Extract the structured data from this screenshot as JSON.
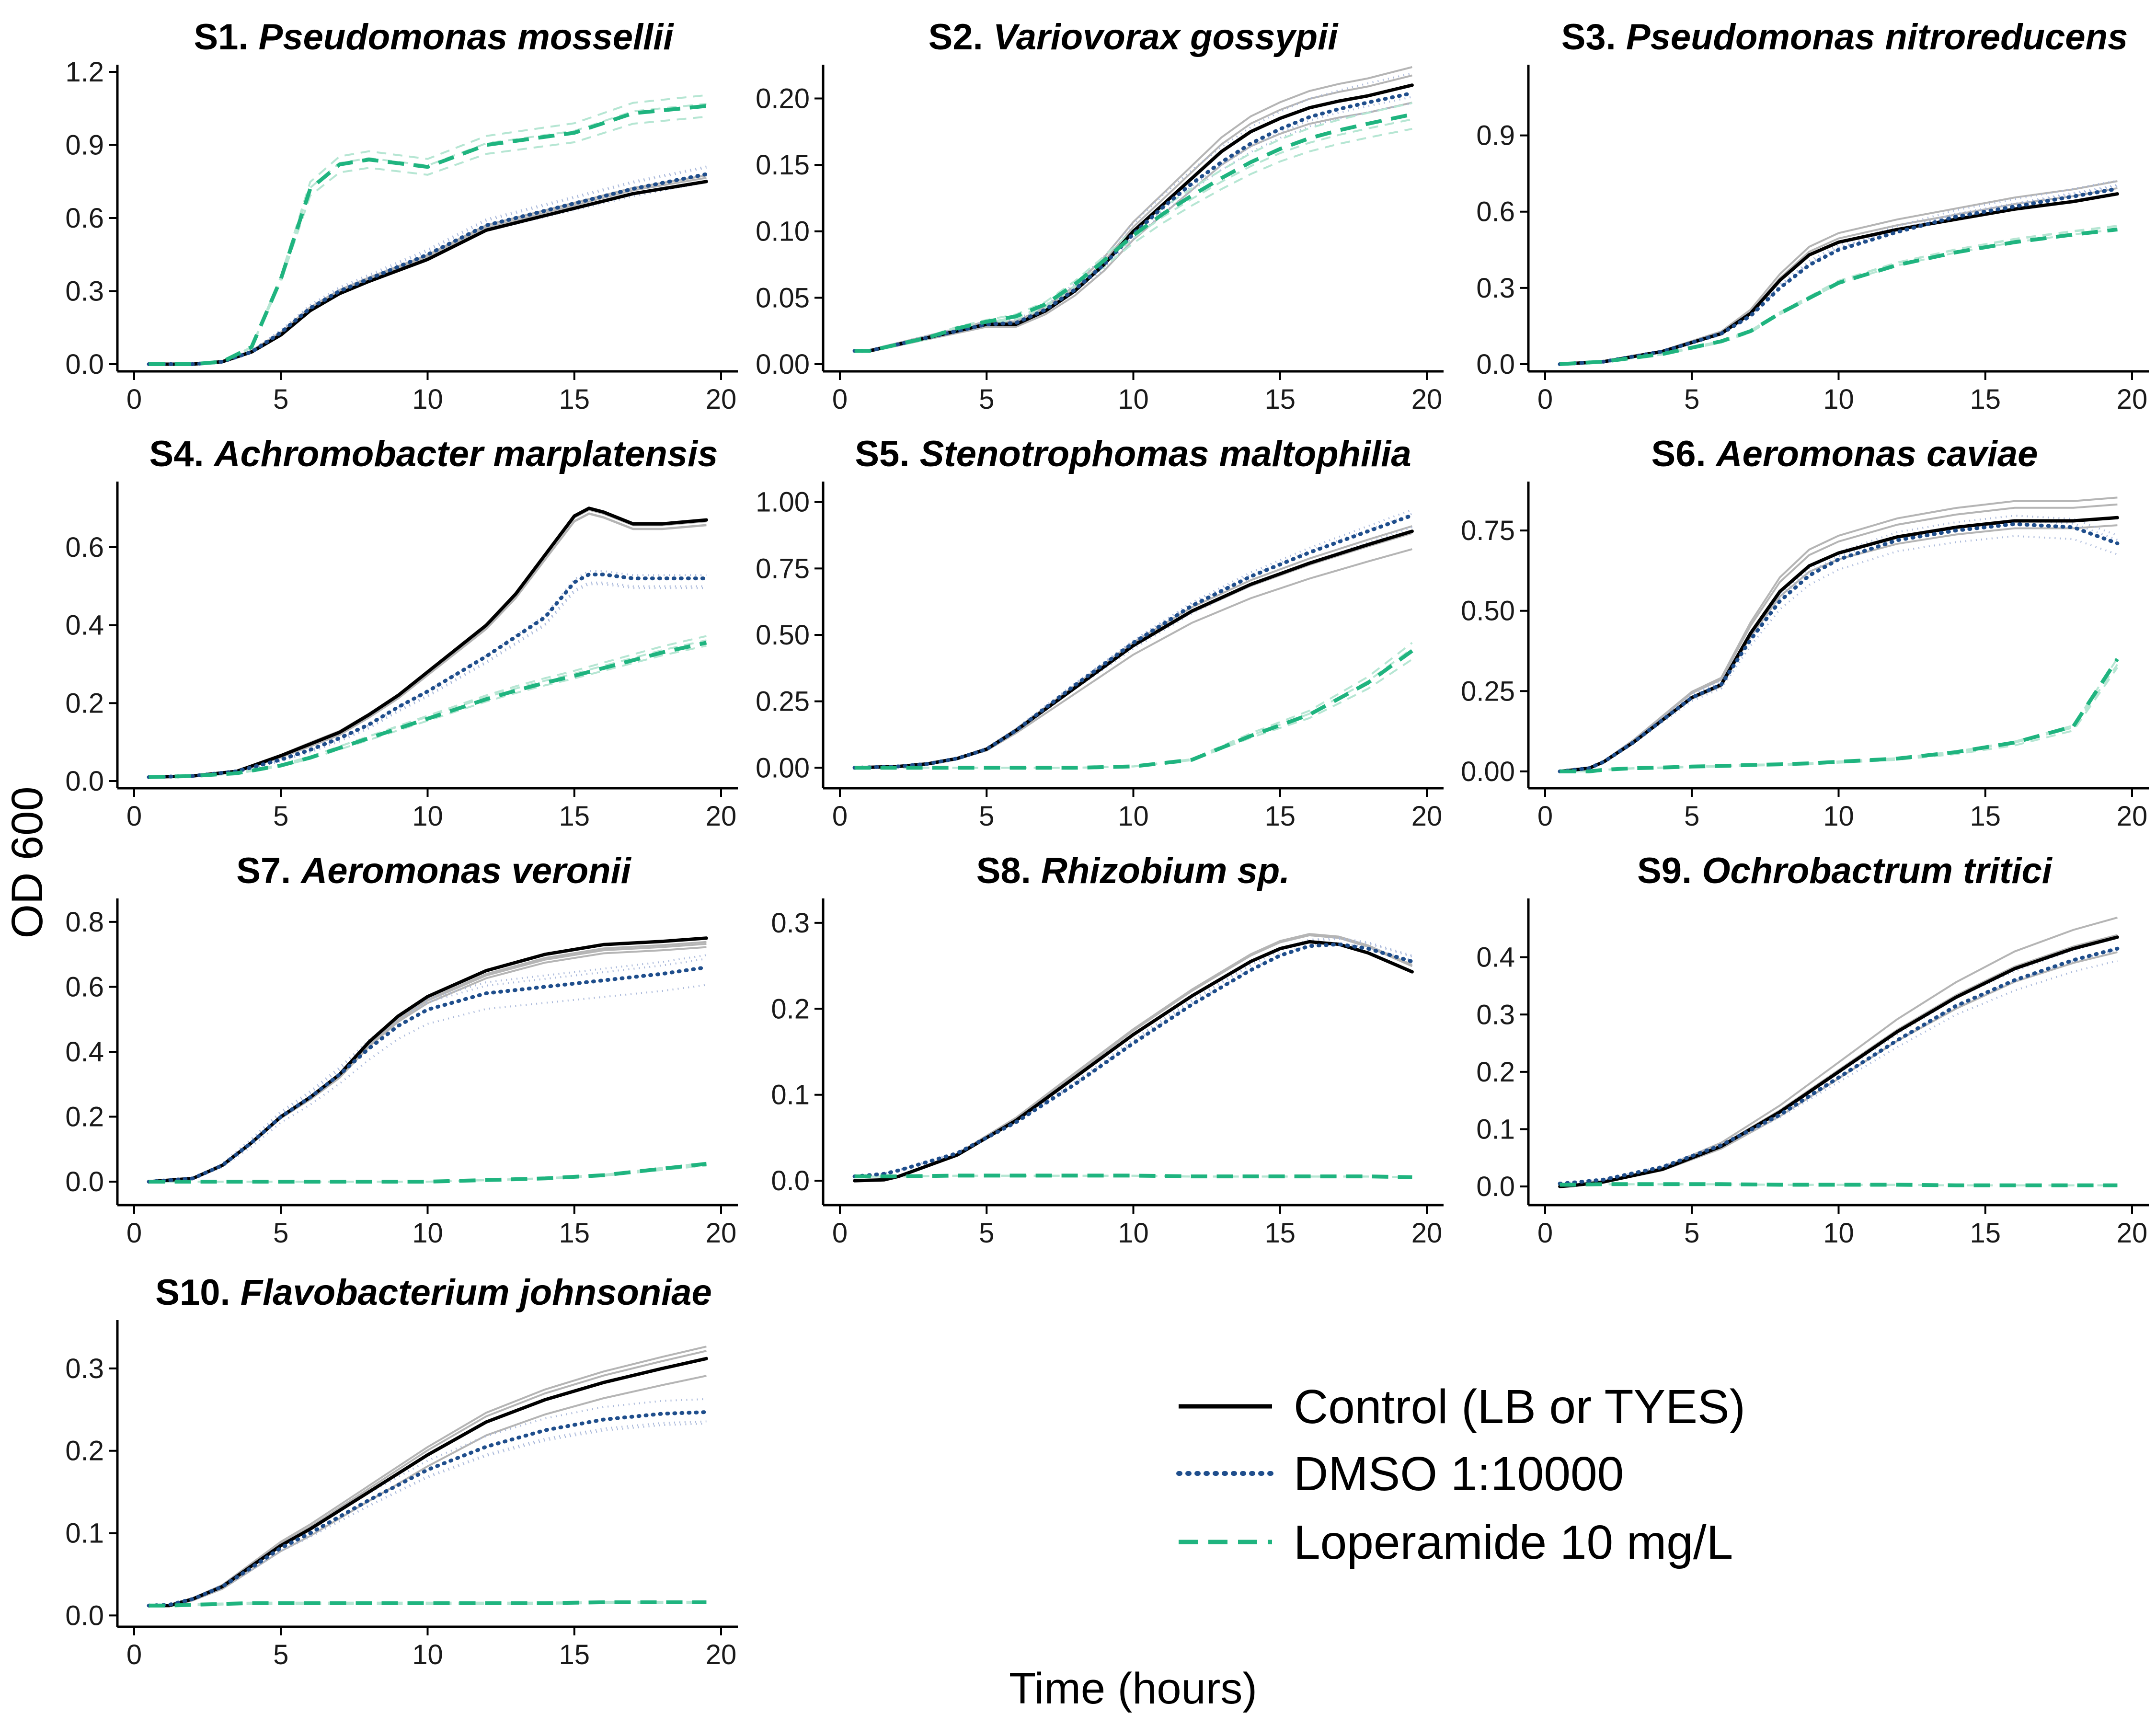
{
  "figure": {
    "xlabel": "Time (hours)",
    "ylabel": "OD 600"
  },
  "legend": {
    "placement": "bottom-right",
    "items": [
      {
        "label": "Control (LB or TYES)",
        "color": "#000000",
        "style": "solid"
      },
      {
        "label": "DMSO 1:10000",
        "color": "#1f4e8c",
        "style": "dotted"
      },
      {
        "label": "Loperamide 10 mg/L",
        "color": "#1fb47f",
        "style": "dashed"
      }
    ]
  },
  "colors": {
    "control": "#000000",
    "control_replicate": "#b5b5b5",
    "dmso": "#1f4e8c",
    "dmso_replicate": "#a9b8da",
    "loperamide": "#1fb47f",
    "loperamide_replicate": "#b6e6d3"
  },
  "chart_data": [
    {
      "type": "line",
      "code": "S1.",
      "species": "Pseudomonas mossellii",
      "xlim": [
        0,
        20
      ],
      "ylim": [
        0,
        1.2
      ],
      "xticks": [
        "0",
        "5",
        "10",
        "15",
        "20"
      ],
      "yticks": [
        "0.0",
        "0.3",
        "0.6",
        "0.9",
        "1.2"
      ],
      "x": [
        0.5,
        1,
        2,
        3,
        4,
        5,
        6,
        7,
        8,
        10,
        12,
        15,
        17,
        19.5
      ],
      "series": [
        {
          "name": "Control (LB or TYES)",
          "values": [
            0.0,
            0.0,
            0.0,
            0.01,
            0.05,
            0.12,
            0.22,
            0.29,
            0.34,
            0.43,
            0.55,
            0.64,
            0.7,
            0.75
          ]
        },
        {
          "name": "DMSO 1:10000",
          "values": [
            0.0,
            0.0,
            0.0,
            0.01,
            0.05,
            0.13,
            0.23,
            0.3,
            0.35,
            0.45,
            0.57,
            0.66,
            0.72,
            0.78
          ]
        },
        {
          "name": "Loperamide 10 mg/L",
          "values": [
            0.0,
            0.0,
            0.0,
            0.01,
            0.07,
            0.35,
            0.72,
            0.82,
            0.84,
            0.81,
            0.9,
            0.95,
            1.03,
            1.06
          ]
        }
      ]
    },
    {
      "type": "line",
      "code": "S2.",
      "species": "Variovorax gossypii",
      "xlim": [
        0,
        20
      ],
      "ylim": [
        0,
        0.22
      ],
      "xticks": [
        "0",
        "5",
        "10",
        "15",
        "20"
      ],
      "yticks": [
        "0.00",
        "0.05",
        "0.10",
        "0.15",
        "0.20"
      ],
      "x": [
        0.5,
        1,
        2,
        3,
        4,
        5,
        6,
        7,
        8,
        9,
        10,
        11,
        12,
        13,
        14,
        15,
        16,
        17,
        18,
        19.5
      ],
      "series": [
        {
          "name": "Control (LB or TYES)",
          "values": [
            0.01,
            0.01,
            0.015,
            0.02,
            0.025,
            0.03,
            0.03,
            0.04,
            0.055,
            0.075,
            0.1,
            0.12,
            0.14,
            0.16,
            0.175,
            0.185,
            0.193,
            0.198,
            0.202,
            0.21
          ]
        },
        {
          "name": "DMSO 1:10000",
          "values": [
            0.01,
            0.01,
            0.015,
            0.02,
            0.025,
            0.03,
            0.031,
            0.041,
            0.056,
            0.075,
            0.098,
            0.118,
            0.136,
            0.152,
            0.166,
            0.177,
            0.186,
            0.192,
            0.197,
            0.204
          ]
        },
        {
          "name": "Loperamide 10 mg/L",
          "values": [
            0.01,
            0.01,
            0.015,
            0.02,
            0.027,
            0.032,
            0.036,
            0.045,
            0.06,
            0.078,
            0.097,
            0.113,
            0.127,
            0.14,
            0.152,
            0.162,
            0.17,
            0.176,
            0.181,
            0.188
          ]
        }
      ]
    },
    {
      "type": "line",
      "code": "S3.",
      "species": "Pseudomonas nitroreducens",
      "xlim": [
        0,
        20
      ],
      "ylim": [
        0,
        1.15
      ],
      "xticks": [
        "0",
        "5",
        "10",
        "15",
        "20"
      ],
      "yticks": [
        "0.0",
        "0.3",
        "0.6",
        "0.9"
      ],
      "x": [
        0.5,
        2,
        4,
        6,
        7,
        8,
        9,
        10,
        12,
        14,
        16,
        18,
        19.5
      ],
      "series": [
        {
          "name": "Control (LB or TYES)",
          "values": [
            0.0,
            0.01,
            0.05,
            0.12,
            0.2,
            0.33,
            0.43,
            0.48,
            0.53,
            0.57,
            0.61,
            0.64,
            0.67
          ]
        },
        {
          "name": "DMSO 1:10000",
          "values": [
            0.0,
            0.01,
            0.05,
            0.12,
            0.19,
            0.3,
            0.39,
            0.45,
            0.52,
            0.58,
            0.62,
            0.66,
            0.69
          ]
        },
        {
          "name": "Loperamide 10 mg/L",
          "values": [
            0.0,
            0.01,
            0.04,
            0.09,
            0.13,
            0.2,
            0.26,
            0.32,
            0.39,
            0.44,
            0.48,
            0.51,
            0.53
          ]
        }
      ]
    },
    {
      "type": "line",
      "code": "S4.",
      "species": "Achromobacter marplatensis",
      "xlim": [
        0,
        20
      ],
      "ylim": [
        0,
        0.75
      ],
      "xticks": [
        "0",
        "5",
        "10",
        "15",
        "20"
      ],
      "yticks": [
        "0.0",
        "0.2",
        "0.4",
        "0.6"
      ],
      "x": [
        0.5,
        2,
        3.5,
        5,
        6,
        7,
        8,
        9,
        10,
        11,
        12,
        13,
        14,
        15,
        15.5,
        16,
        17,
        18,
        19.5
      ],
      "series": [
        {
          "name": "Control (LB or TYES)",
          "values": [
            0.01,
            0.013,
            0.025,
            0.065,
            0.095,
            0.125,
            0.17,
            0.22,
            0.28,
            0.34,
            0.4,
            0.48,
            0.58,
            0.68,
            0.7,
            0.69,
            0.66,
            0.66,
            0.67
          ]
        },
        {
          "name": "DMSO 1:10000",
          "values": [
            0.01,
            0.013,
            0.025,
            0.055,
            0.08,
            0.11,
            0.145,
            0.19,
            0.23,
            0.275,
            0.32,
            0.37,
            0.42,
            0.51,
            0.53,
            0.53,
            0.52,
            0.52,
            0.52
          ]
        },
        {
          "name": "Loperamide 10 mg/L",
          "values": [
            0.01,
            0.013,
            0.02,
            0.04,
            0.06,
            0.085,
            0.11,
            0.135,
            0.16,
            0.185,
            0.21,
            0.232,
            0.252,
            0.27,
            0.28,
            0.29,
            0.31,
            0.33,
            0.355
          ]
        }
      ]
    },
    {
      "type": "line",
      "code": "S5.",
      "species": "Stenotrophomas maltophilia",
      "xlim": [
        0,
        20
      ],
      "ylim": [
        -0.05,
        1.05
      ],
      "xticks": [
        "0",
        "5",
        "10",
        "15",
        "20"
      ],
      "yticks": [
        "0.00",
        "0.25",
        "0.50",
        "0.75",
        "1.00"
      ],
      "x": [
        0.5,
        2,
        3,
        4,
        5,
        6,
        8,
        10,
        12,
        14,
        16,
        18,
        19.5
      ],
      "series": [
        {
          "name": "Control (LB or TYES)",
          "values": [
            0.0,
            0.005,
            0.015,
            0.035,
            0.07,
            0.14,
            0.3,
            0.46,
            0.59,
            0.69,
            0.77,
            0.84,
            0.89
          ]
        },
        {
          "name": "DMSO 1:10000",
          "values": [
            0.0,
            0.005,
            0.015,
            0.035,
            0.07,
            0.14,
            0.31,
            0.47,
            0.61,
            0.72,
            0.81,
            0.89,
            0.95
          ]
        },
        {
          "name": "Loperamide 10 mg/L",
          "values": [
            0.0,
            0.0,
            0.0,
            0.0,
            0.0,
            0.0,
            0.0,
            0.005,
            0.03,
            0.12,
            0.2,
            0.32,
            0.44
          ]
        }
      ]
    },
    {
      "type": "line",
      "code": "S6.",
      "species": "Aeromonas caviae",
      "xlim": [
        0,
        20
      ],
      "ylim": [
        -0.03,
        0.88
      ],
      "xticks": [
        "0",
        "5",
        "10",
        "15",
        "20"
      ],
      "yticks": [
        "0.00",
        "0.25",
        "0.50",
        "0.75"
      ],
      "x": [
        0.5,
        1.5,
        2,
        3,
        4,
        5,
        6,
        7,
        8,
        9,
        10,
        12,
        14,
        16,
        18,
        19.5
      ],
      "series": [
        {
          "name": "Control (LB or TYES)",
          "values": [
            0.0,
            0.01,
            0.03,
            0.09,
            0.16,
            0.23,
            0.27,
            0.43,
            0.56,
            0.64,
            0.68,
            0.73,
            0.76,
            0.78,
            0.78,
            0.79
          ]
        },
        {
          "name": "DMSO 1:10000",
          "values": [
            0.0,
            0.01,
            0.03,
            0.09,
            0.16,
            0.23,
            0.27,
            0.41,
            0.53,
            0.61,
            0.66,
            0.72,
            0.75,
            0.77,
            0.76,
            0.71
          ]
        },
        {
          "name": "Loperamide 10 mg/L",
          "values": [
            0.0,
            0.0,
            0.005,
            0.01,
            0.012,
            0.015,
            0.017,
            0.02,
            0.022,
            0.025,
            0.03,
            0.04,
            0.06,
            0.09,
            0.14,
            0.35
          ]
        }
      ]
    },
    {
      "type": "line",
      "code": "S7.",
      "species": "Aeromonas veronii",
      "xlim": [
        0,
        20
      ],
      "ylim": [
        -0.05,
        0.85
      ],
      "xticks": [
        "0",
        "5",
        "10",
        "15",
        "20"
      ],
      "yticks": [
        "0.0",
        "0.2",
        "0.4",
        "0.6",
        "0.8"
      ],
      "x": [
        0.5,
        2,
        3,
        4,
        5,
        6,
        7,
        8,
        9,
        10,
        12,
        14,
        16,
        18,
        19.5
      ],
      "series": [
        {
          "name": "Control (LB or TYES)",
          "values": [
            0.0,
            0.01,
            0.05,
            0.12,
            0.2,
            0.26,
            0.33,
            0.43,
            0.51,
            0.57,
            0.65,
            0.7,
            0.73,
            0.74,
            0.75
          ]
        },
        {
          "name": "DMSO 1:10000",
          "values": [
            0.0,
            0.01,
            0.05,
            0.12,
            0.2,
            0.26,
            0.33,
            0.41,
            0.48,
            0.53,
            0.58,
            0.6,
            0.62,
            0.64,
            0.66
          ]
        },
        {
          "name": "Loperamide 10 mg/L",
          "values": [
            0.0,
            0.0,
            0.0,
            0.0,
            0.0,
            0.0,
            0.0,
            0.0,
            0.0,
            0.0,
            0.005,
            0.01,
            0.02,
            0.04,
            0.055
          ]
        }
      ]
    },
    {
      "type": "line",
      "code": "S8.",
      "species": "Rhizobium sp.",
      "xlim": [
        0,
        20
      ],
      "ylim": [
        -0.02,
        0.32
      ],
      "xticks": [
        "0",
        "5",
        "10",
        "15",
        "20"
      ],
      "yticks": [
        "0.0",
        "0.1",
        "0.2",
        "0.3"
      ],
      "x": [
        0.5,
        1.5,
        2,
        4,
        6,
        8,
        10,
        12,
        14,
        15,
        16,
        17,
        18,
        19.5
      ],
      "series": [
        {
          "name": "Control (LB or TYES)",
          "values": [
            0.0,
            0.001,
            0.005,
            0.03,
            0.07,
            0.12,
            0.17,
            0.215,
            0.255,
            0.27,
            0.278,
            0.275,
            0.265,
            0.243
          ]
        },
        {
          "name": "DMSO 1:10000",
          "values": [
            0.005,
            0.008,
            0.012,
            0.032,
            0.068,
            0.112,
            0.16,
            0.205,
            0.245,
            0.262,
            0.273,
            0.275,
            0.27,
            0.255
          ]
        },
        {
          "name": "Loperamide 10 mg/L",
          "values": [
            0.005,
            0.005,
            0.005,
            0.006,
            0.006,
            0.006,
            0.006,
            0.005,
            0.005,
            0.005,
            0.005,
            0.005,
            0.005,
            0.004
          ]
        }
      ]
    },
    {
      "type": "line",
      "code": "S9.",
      "species": "Ochrobactrum tritici",
      "xlim": [
        0,
        20
      ],
      "ylim": [
        -0.02,
        0.49
      ],
      "xticks": [
        "0",
        "5",
        "10",
        "15",
        "20"
      ],
      "yticks": [
        "0.0",
        "0.1",
        "0.2",
        "0.3",
        "0.4"
      ],
      "x": [
        0.5,
        1,
        2,
        4,
        6,
        8,
        10,
        12,
        14,
        16,
        18,
        19.5
      ],
      "series": [
        {
          "name": "Control (LB or TYES)",
          "values": [
            0.0,
            0.002,
            0.008,
            0.03,
            0.07,
            0.13,
            0.2,
            0.27,
            0.33,
            0.38,
            0.415,
            0.435
          ]
        },
        {
          "name": "DMSO 1:10000",
          "values": [
            0.005,
            0.007,
            0.012,
            0.034,
            0.072,
            0.125,
            0.19,
            0.255,
            0.315,
            0.36,
            0.395,
            0.415
          ]
        },
        {
          "name": "Loperamide 10 mg/L",
          "values": [
            0.003,
            0.003,
            0.004,
            0.004,
            0.004,
            0.003,
            0.003,
            0.003,
            0.002,
            0.002,
            0.002,
            0.002
          ]
        }
      ]
    },
    {
      "type": "line",
      "code": "S10.",
      "species": "Flavobacterium johnsoniae",
      "xlim": [
        0,
        20
      ],
      "ylim": [
        -0.005,
        0.35
      ],
      "xticks": [
        "0",
        "5",
        "10",
        "15",
        "20"
      ],
      "yticks": [
        "0.0",
        "0.1",
        "0.2",
        "0.3"
      ],
      "x": [
        0.5,
        1.2,
        2,
        3,
        4,
        5,
        6,
        8,
        10,
        12,
        14,
        16,
        18,
        19.5
      ],
      "series": [
        {
          "name": "Control (LB or TYES)",
          "values": [
            0.012,
            0.012,
            0.02,
            0.035,
            0.06,
            0.085,
            0.105,
            0.15,
            0.195,
            0.235,
            0.262,
            0.283,
            0.3,
            0.312
          ]
        },
        {
          "name": "DMSO 1:10000",
          "values": [
            0.012,
            0.013,
            0.02,
            0.035,
            0.058,
            0.082,
            0.1,
            0.14,
            0.177,
            0.205,
            0.225,
            0.238,
            0.245,
            0.247
          ]
        },
        {
          "name": "Loperamide 10 mg/L",
          "values": [
            0.012,
            0.012,
            0.013,
            0.014,
            0.015,
            0.015,
            0.015,
            0.015,
            0.015,
            0.015,
            0.015,
            0.016,
            0.016,
            0.016
          ]
        }
      ]
    }
  ]
}
